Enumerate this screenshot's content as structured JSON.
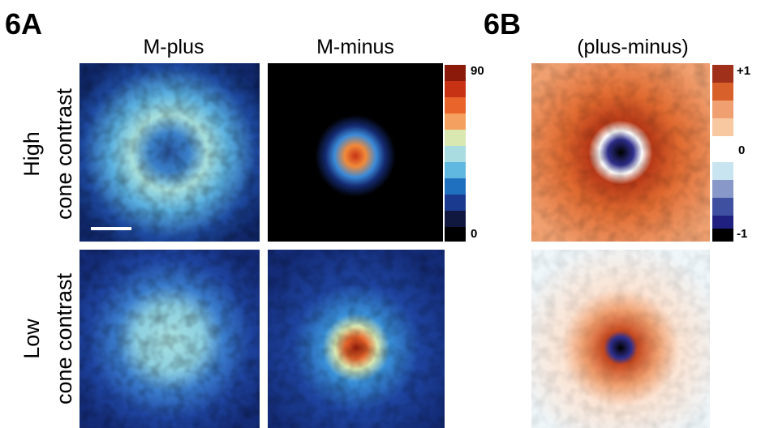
{
  "panel_a": {
    "label": "6A",
    "columns": [
      "M-plus",
      "M-minus"
    ],
    "colorbar": {
      "max": "90",
      "min": "0"
    }
  },
  "panel_b": {
    "label": "6B",
    "column": "(plus-minus)",
    "colorbar": {
      "max": "+1",
      "mid": "0",
      "min": "-1"
    }
  },
  "rows": [
    {
      "label": "High",
      "sublabel": "cone contrast"
    },
    {
      "label": "Low",
      "sublabel": "cone contrast"
    }
  ]
}
